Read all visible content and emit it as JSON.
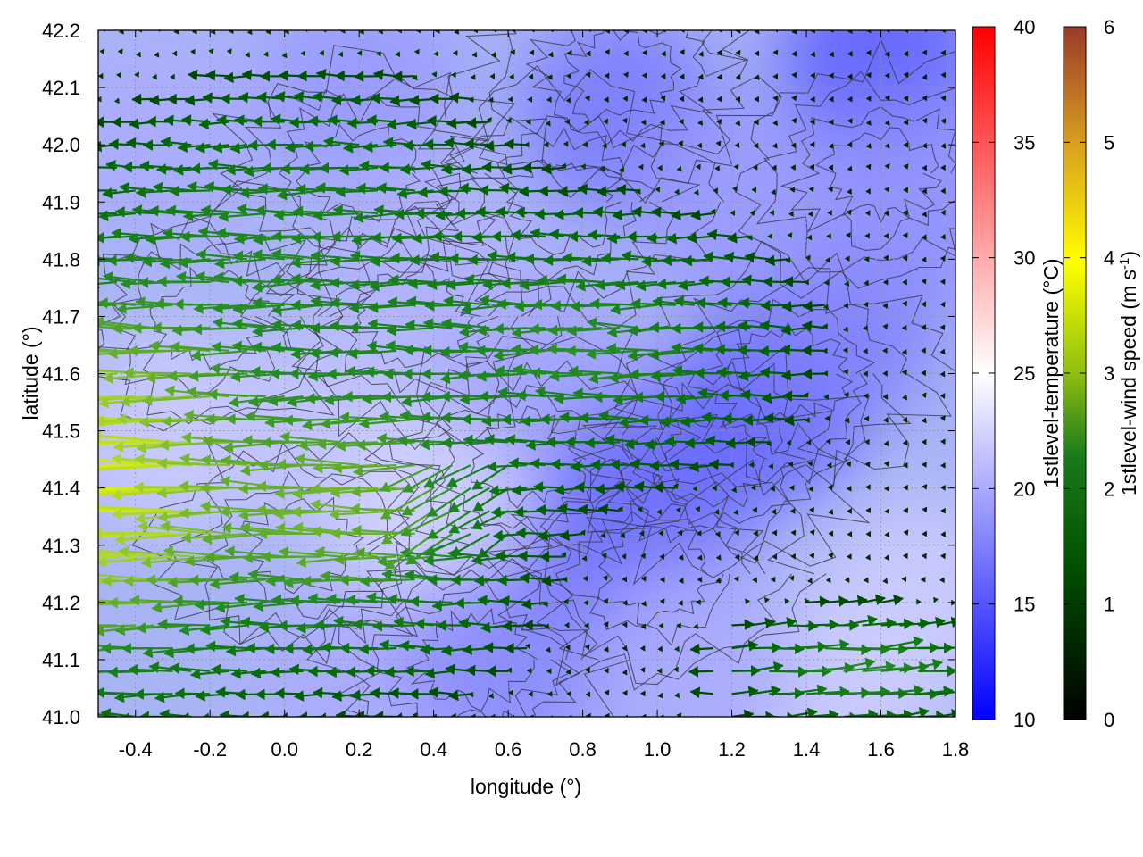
{
  "chart_data": {
    "type": "heatmap",
    "description_fields": "temperature field with wind vectors and contour lines",
    "xlabel": "longitude (°)",
    "ylabel": "latitude (°)",
    "xlim": [
      -0.5,
      1.8
    ],
    "ylim": [
      41.0,
      42.2
    ],
    "x_ticks": [
      "-0.4",
      "-0.2",
      "0.0",
      "0.2",
      "0.4",
      "0.6",
      "0.8",
      "1.0",
      "1.2",
      "1.4",
      "1.6",
      "1.8"
    ],
    "y_ticks": [
      "41.0",
      "41.1",
      "41.2",
      "41.3",
      "41.4",
      "41.5",
      "41.6",
      "41.7",
      "41.8",
      "41.9",
      "42.0",
      "42.1",
      "42.2"
    ],
    "grid": true,
    "colorbars": [
      {
        "name": "temperature",
        "label": "1stlevel-temperature (°C)",
        "range": [
          10,
          40
        ],
        "ticks": [
          "10",
          "15",
          "20",
          "25",
          "30",
          "35",
          "40"
        ],
        "colors": [
          "#0000ff",
          "#ffffff",
          "#ff0000"
        ]
      },
      {
        "name": "wind",
        "label_main": "1stlevel-wind speed (m s",
        "label_sup": "-1",
        "label_end": ")",
        "range": [
          0,
          6
        ],
        "ticks": [
          "0",
          "1",
          "2",
          "3",
          "4",
          "5",
          "6"
        ],
        "colors": [
          "#000000",
          "#006400",
          "#228b22",
          "#9acd32",
          "#ffff00",
          "#daa520",
          "#a0522d"
        ]
      }
    ],
    "temperature_regions": [
      {
        "lon": -0.3,
        "lat": 41.5,
        "temp": 22
      },
      {
        "lon": 0.1,
        "lat": 41.5,
        "temp": 21.5
      },
      {
        "lon": 0.4,
        "lat": 41.35,
        "temp": 22.5
      },
      {
        "lon": 0.2,
        "lat": 41.05,
        "temp": 20
      },
      {
        "lon": 0.6,
        "lat": 41.1,
        "temp": 18
      },
      {
        "lon": 0.7,
        "lat": 41.6,
        "temp": 19.5
      },
      {
        "lon": 0.9,
        "lat": 41.3,
        "temp": 17
      },
      {
        "lon": 1.0,
        "lat": 41.4,
        "temp": 16.5
      },
      {
        "lon": 1.3,
        "lat": 41.55,
        "temp": 16
      },
      {
        "lon": 1.5,
        "lat": 41.7,
        "temp": 17.5
      },
      {
        "lon": 1.6,
        "lat": 42.15,
        "temp": 15.5
      },
      {
        "lon": 0.9,
        "lat": 42.05,
        "temp": 17
      },
      {
        "lon": 0.2,
        "lat": 42.1,
        "temp": 19
      },
      {
        "lon": -0.3,
        "lat": 42.0,
        "temp": 20
      },
      {
        "lon": 1.5,
        "lat": 41.05,
        "temp": 22
      },
      {
        "lon": 1.7,
        "lat": 41.2,
        "temp": 22
      },
      {
        "lon": 1.1,
        "lat": 41.1,
        "temp": 20
      },
      {
        "lon": 0.4,
        "lat": 41.8,
        "temp": 20.5
      },
      {
        "lon": 1.7,
        "lat": 41.9,
        "temp": 18.5
      },
      {
        "lon": 1.2,
        "lat": 41.9,
        "temp": 19
      }
    ]
  }
}
